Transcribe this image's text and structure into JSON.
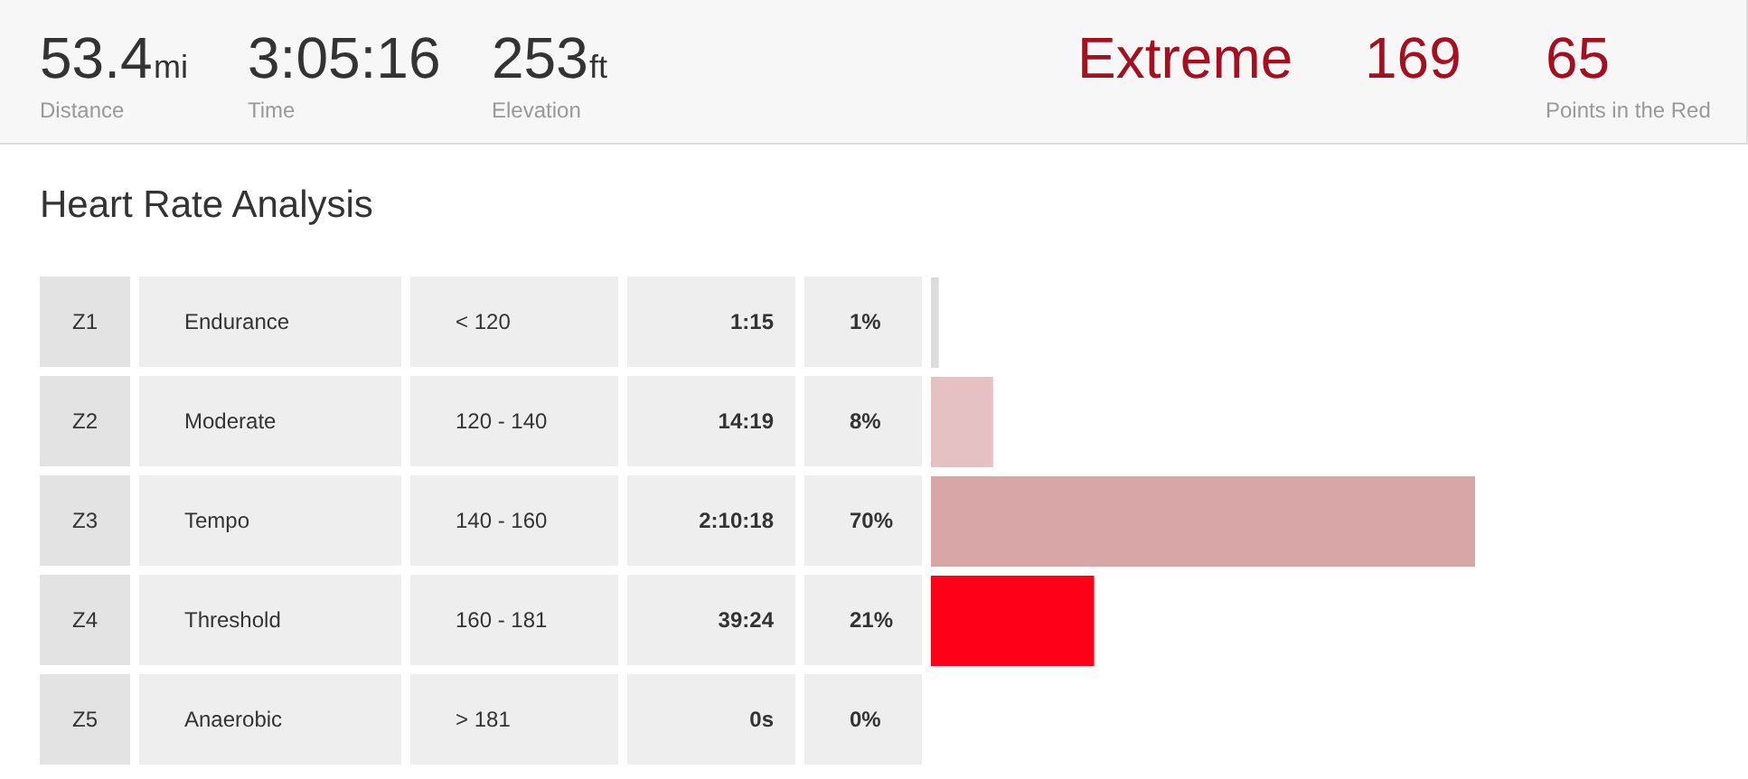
{
  "chart_data": [
    {
      "type": "other",
      "annotations": [
        "53.4",
        "mi",
        "Distance",
        "3:05:16",
        "Time",
        "253",
        "ft",
        "Elevation",
        "Extreme",
        "169",
        "65",
        "Points in the Red"
      ]
    },
    {
      "type": "bar",
      "title": "Heart Rate Analysis",
      "orientation": "horizontal",
      "categories": [
        "Z1",
        "Z2",
        "Z3",
        "Z4",
        "Z5"
      ],
      "values": [
        1,
        8,
        70,
        21,
        0
      ],
      "value_labels": [
        "1%",
        "8%",
        "70%",
        "21%",
        "0%"
      ],
      "colors": [
        "#dcdcdc",
        "#e6c1c3",
        "#d9a6a8",
        "#ff0019",
        "#eeeeee"
      ],
      "annotations": [
        "Endurance",
        "< 120",
        "1:15",
        "Moderate",
        "120 - 140",
        "14:19",
        "Tempo",
        "140 - 160",
        "2:10:18",
        "Threshold",
        "160 - 181",
        "39:24",
        "Anaerobic",
        "> 181",
        "0s"
      ]
    }
  ]
}
